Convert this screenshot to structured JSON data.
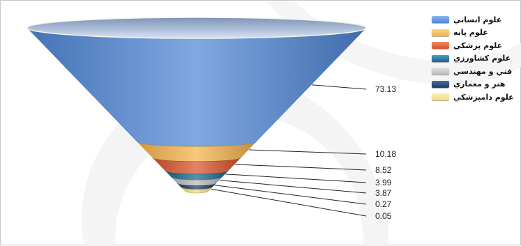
{
  "chart_data": {
    "type": "funnel",
    "categories": [
      "علوم انساني",
      "علوم پايه",
      "علوم پزشكي",
      "علوم كشاورزي",
      "فني و مهندسي",
      "هنر و معماري",
      "علوم دامپزشكي"
    ],
    "values": [
      73.13,
      10.18,
      8.52,
      3.99,
      3.87,
      0.27,
      0.05
    ],
    "value_labels": [
      "73.13",
      "10.18",
      "8.52",
      "3.99",
      "3.87",
      "0.27",
      "0.05"
    ],
    "colors": [
      "#4f86d6",
      "#f4b24a",
      "#d9532a",
      "#17698c",
      "#b9b9b9",
      "#1f3b66",
      "#f8dc7a"
    ],
    "legend_position": "top-right",
    "title": "",
    "xlabel": "",
    "ylabel": ""
  }
}
